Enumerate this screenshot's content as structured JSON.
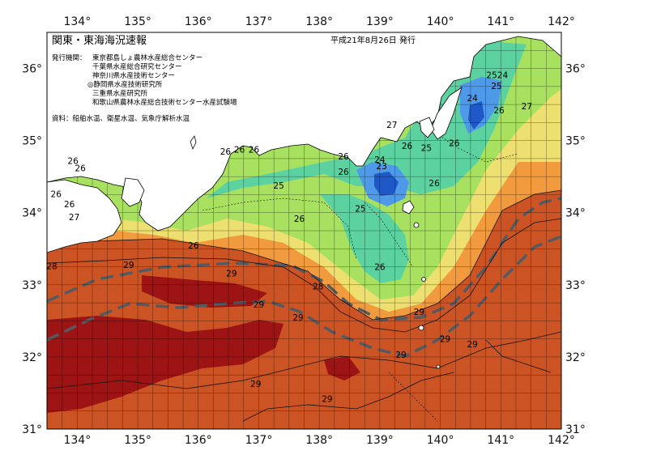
{
  "title": "関東・東海海況速報",
  "issue_date": "平成21年8月26日 発行",
  "issuer_label": "発行機関：",
  "issuers": [
    "東京都島しょ農林水産総合センター",
    "千葉県水産総合研究センター",
    "神奈川県水産技術センター",
    "◎静岡県水産技術研究所",
    "三重県水産研究所",
    "和歌山県農林水産総合技術センター水産試験場"
  ],
  "source_note": "資料：船舶水温、衛星水温、気象庁解析水温",
  "lon_ticks": [
    "134°",
    "135°",
    "136°",
    "137°",
    "138°",
    "139°",
    "140°",
    "141°",
    "142°"
  ],
  "lat_ticks": [
    "36°",
    "35°",
    "34°",
    "33°",
    "32°",
    "31°"
  ],
  "isotherm_labels": [
    {
      "text": "26",
      "lon": 133.93,
      "lat": 34.72
    },
    {
      "text": "26",
      "lon": 134.05,
      "lat": 34.62
    },
    {
      "text": "26",
      "lon": 133.65,
      "lat": 34.26
    },
    {
      "text": "26",
      "lon": 133.87,
      "lat": 34.12
    },
    {
      "text": "27",
      "lon": 133.95,
      "lat": 33.94
    },
    {
      "text": "28",
      "lon": 133.58,
      "lat": 33.26
    },
    {
      "text": "29",
      "lon": 134.85,
      "lat": 33.28
    },
    {
      "text": "26",
      "lon": 135.92,
      "lat": 33.55
    },
    {
      "text": "26",
      "lon": 136.45,
      "lat": 34.85
    },
    {
      "text": "26",
      "lon": 136.68,
      "lat": 34.88
    },
    {
      "text": "26",
      "lon": 136.92,
      "lat": 34.88
    },
    {
      "text": "25",
      "lon": 137.33,
      "lat": 34.38
    },
    {
      "text": "26",
      "lon": 137.67,
      "lat": 33.92
    },
    {
      "text": "29",
      "lon": 136.55,
      "lat": 33.16
    },
    {
      "text": "29",
      "lon": 137.0,
      "lat": 32.73
    },
    {
      "text": "28",
      "lon": 137.98,
      "lat": 32.98
    },
    {
      "text": "29",
      "lon": 137.65,
      "lat": 32.55
    },
    {
      "text": "29",
      "lon": 136.95,
      "lat": 31.63
    },
    {
      "text": "29",
      "lon": 138.13,
      "lat": 31.42
    },
    {
      "text": "26",
      "lon": 138.4,
      "lat": 34.78
    },
    {
      "text": "26",
      "lon": 138.4,
      "lat": 34.57
    },
    {
      "text": "25",
      "lon": 138.68,
      "lat": 34.06
    },
    {
      "text": "24",
      "lon": 139.0,
      "lat": 34.74
    },
    {
      "text": "23",
      "lon": 139.03,
      "lat": 34.65
    },
    {
      "text": "26",
      "lon": 139.0,
      "lat": 33.25
    },
    {
      "text": "27",
      "lon": 139.2,
      "lat": 35.22
    },
    {
      "text": "26",
      "lon": 139.45,
      "lat": 34.93
    },
    {
      "text": "25",
      "lon": 139.77,
      "lat": 34.9
    },
    {
      "text": "26",
      "lon": 140.23,
      "lat": 34.97
    },
    {
      "text": "26",
      "lon": 139.9,
      "lat": 34.41
    },
    {
      "text": "29",
      "lon": 139.65,
      "lat": 32.63
    },
    {
      "text": "29",
      "lon": 139.35,
      "lat": 32.03
    },
    {
      "text": "29",
      "lon": 140.08,
      "lat": 32.25
    },
    {
      "text": "29",
      "lon": 140.53,
      "lat": 32.18
    },
    {
      "text": "25",
      "lon": 140.85,
      "lat": 35.91
    },
    {
      "text": "24",
      "lon": 141.03,
      "lat": 35.91
    },
    {
      "text": "25",
      "lon": 140.93,
      "lat": 35.76
    },
    {
      "text": "24",
      "lon": 140.53,
      "lat": 35.59
    },
    {
      "text": "26",
      "lon": 140.97,
      "lat": 35.42
    },
    {
      "text": "27",
      "lon": 141.43,
      "lat": 35.48
    }
  ],
  "colors": {
    "land": "#ffffff",
    "sst_23": "#1f59c8",
    "sst_24": "#4f9ae8",
    "sst_25": "#5cd2a0",
    "sst_26": "#a8e060",
    "sst_27": "#eee070",
    "sst_28": "#f29a3e",
    "sst_29": "#cc5424",
    "sst_30": "#9e1414",
    "kuroshio_axis": "#555a60"
  }
}
